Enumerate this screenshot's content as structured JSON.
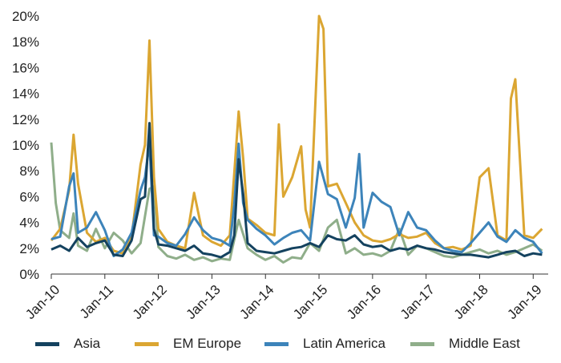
{
  "chart_data": {
    "type": "line",
    "title": "",
    "xlabel": "",
    "ylabel": "",
    "ylim": [
      0,
      20
    ],
    "y_ticks": [
      "0%",
      "2%",
      "4%",
      "6%",
      "8%",
      "10%",
      "12%",
      "14%",
      "16%",
      "18%",
      "20%"
    ],
    "x_ticks": [
      "Jan-10",
      "Jan-11",
      "Jan-12",
      "Jan-13",
      "Jan-14",
      "Jan-15",
      "Jan-16",
      "Jan-17",
      "Jan-18",
      "Jan-19"
    ],
    "grid": false,
    "legend": "bottom",
    "series": [
      {
        "name": "Asia",
        "color": "#14425f",
        "x": [
          "2010-01",
          "2010-03",
          "2010-05",
          "2010-07",
          "2010-09",
          "2010-11",
          "2011-01",
          "2011-03",
          "2011-05",
          "2011-07",
          "2011-09",
          "2011-10",
          "2011-11",
          "2011-12",
          "2012-01",
          "2012-03",
          "2012-05",
          "2012-07",
          "2012-09",
          "2012-11",
          "2013-01",
          "2013-03",
          "2013-05",
          "2013-06",
          "2013-07",
          "2013-08",
          "2013-09",
          "2013-11",
          "2014-01",
          "2014-03",
          "2014-05",
          "2014-07",
          "2014-09",
          "2014-11",
          "2015-01",
          "2015-03",
          "2015-05",
          "2015-07",
          "2015-09",
          "2015-11",
          "2016-01",
          "2016-03",
          "2016-05",
          "2016-07",
          "2016-09",
          "2016-11",
          "2017-01",
          "2017-03",
          "2017-05",
          "2017-07",
          "2017-09",
          "2017-11",
          "2018-01",
          "2018-03",
          "2018-05",
          "2018-07",
          "2018-09",
          "2018-11",
          "2019-01",
          "2019-03"
        ],
        "values": [
          1.9,
          2.2,
          1.8,
          2.8,
          2.1,
          2.4,
          2.6,
          1.5,
          1.4,
          2.6,
          5.8,
          6.0,
          11.7,
          3.5,
          2.3,
          2.2,
          2.0,
          1.8,
          2.2,
          1.6,
          1.5,
          1.3,
          1.7,
          3.0,
          8.9,
          6.2,
          2.4,
          1.8,
          1.7,
          1.6,
          1.8,
          2.0,
          2.1,
          2.4,
          2.1,
          3.0,
          2.7,
          2.6,
          3.0,
          2.3,
          2.1,
          2.2,
          1.8,
          2.0,
          1.9,
          2.2,
          2.0,
          1.9,
          1.7,
          1.6,
          1.5,
          1.5,
          1.4,
          1.3,
          1.5,
          1.7,
          1.8,
          1.4,
          1.6,
          1.5
        ]
      },
      {
        "name": "EM Europe",
        "color": "#dba632",
        "x": [
          "2010-01",
          "2010-03",
          "2010-05",
          "2010-06",
          "2010-07",
          "2010-09",
          "2010-11",
          "2011-01",
          "2011-03",
          "2011-05",
          "2011-07",
          "2011-09",
          "2011-10",
          "2011-11",
          "2011-12",
          "2012-01",
          "2012-03",
          "2012-05",
          "2012-07",
          "2012-09",
          "2012-11",
          "2013-01",
          "2013-03",
          "2013-05",
          "2013-06",
          "2013-07",
          "2013-08",
          "2013-09",
          "2013-11",
          "2014-01",
          "2014-03",
          "2014-04",
          "2014-05",
          "2014-07",
          "2014-09",
          "2014-10",
          "2014-11",
          "2015-01",
          "2015-02",
          "2015-03",
          "2015-05",
          "2015-07",
          "2015-09",
          "2015-11",
          "2016-01",
          "2016-03",
          "2016-05",
          "2016-07",
          "2016-09",
          "2016-11",
          "2017-01",
          "2017-03",
          "2017-05",
          "2017-07",
          "2017-09",
          "2017-11",
          "2018-01",
          "2018-03",
          "2018-05",
          "2018-07",
          "2018-08",
          "2018-09",
          "2018-11",
          "2019-01",
          "2019-03"
        ],
        "values": [
          2.6,
          3.5,
          6.5,
          10.8,
          7.0,
          3.2,
          2.5,
          2.8,
          1.8,
          1.6,
          2.9,
          8.5,
          10.0,
          18.1,
          7.5,
          3.5,
          2.5,
          2.2,
          2.0,
          6.3,
          3.0,
          2.5,
          2.2,
          3.0,
          7.8,
          12.6,
          9.0,
          4.3,
          3.8,
          3.2,
          3.0,
          11.6,
          6.0,
          7.5,
          9.9,
          5.0,
          3.6,
          20.0,
          19.0,
          6.8,
          7.0,
          5.5,
          4.0,
          3.0,
          2.6,
          2.5,
          2.7,
          3.1,
          2.8,
          2.9,
          3.2,
          2.4,
          2.0,
          2.1,
          1.9,
          2.2,
          7.5,
          8.2,
          3.0,
          2.6,
          13.6,
          15.1,
          3.0,
          2.8,
          3.5
        ]
      },
      {
        "name": "Latin America",
        "color": "#3d84ba",
        "x": [
          "2010-01",
          "2010-03",
          "2010-05",
          "2010-06",
          "2010-07",
          "2010-09",
          "2010-11",
          "2011-01",
          "2011-03",
          "2011-05",
          "2011-07",
          "2011-09",
          "2011-10",
          "2011-11",
          "2011-12",
          "2012-01",
          "2012-03",
          "2012-05",
          "2012-07",
          "2012-09",
          "2012-11",
          "2013-01",
          "2013-03",
          "2013-05",
          "2013-06",
          "2013-07",
          "2013-08",
          "2013-09",
          "2013-11",
          "2014-01",
          "2014-03",
          "2014-05",
          "2014-07",
          "2014-09",
          "2014-11",
          "2015-01",
          "2015-03",
          "2015-05",
          "2015-07",
          "2015-09",
          "2015-10",
          "2015-11",
          "2016-01",
          "2016-03",
          "2016-05",
          "2016-07",
          "2016-09",
          "2016-11",
          "2017-01",
          "2017-03",
          "2017-05",
          "2017-07",
          "2017-09",
          "2017-11",
          "2018-01",
          "2018-03",
          "2018-05",
          "2018-07",
          "2018-09",
          "2018-11",
          "2019-01",
          "2019-03"
        ],
        "values": [
          2.7,
          2.9,
          6.8,
          7.8,
          3.2,
          3.6,
          4.8,
          3.4,
          1.4,
          1.9,
          3.2,
          6.5,
          7.5,
          10.2,
          3.0,
          2.9,
          2.4,
          2.2,
          3.1,
          4.4,
          3.4,
          2.8,
          2.6,
          2.2,
          5.4,
          10.1,
          5.5,
          4.2,
          3.5,
          3.0,
          2.3,
          2.8,
          3.2,
          3.4,
          2.6,
          8.7,
          6.2,
          5.8,
          3.6,
          5.9,
          9.3,
          3.6,
          6.3,
          5.6,
          5.2,
          3.0,
          4.8,
          3.6,
          3.4,
          2.6,
          2.0,
          1.8,
          1.7,
          2.4,
          3.2,
          4.0,
          2.9,
          2.5,
          3.4,
          2.8,
          2.5,
          1.6
        ]
      },
      {
        "name": "Middle East",
        "color": "#8fae8a",
        "x": [
          "2010-01",
          "2010-02",
          "2010-03",
          "2010-05",
          "2010-06",
          "2010-07",
          "2010-09",
          "2010-11",
          "2011-01",
          "2011-03",
          "2011-05",
          "2011-07",
          "2011-09",
          "2011-11",
          "2011-12",
          "2012-01",
          "2012-03",
          "2012-05",
          "2012-07",
          "2012-09",
          "2012-11",
          "2013-01",
          "2013-03",
          "2013-05",
          "2013-07",
          "2013-09",
          "2013-11",
          "2014-01",
          "2014-03",
          "2014-05",
          "2014-07",
          "2014-09",
          "2014-11",
          "2015-01",
          "2015-03",
          "2015-05",
          "2015-07",
          "2015-09",
          "2015-11",
          "2016-01",
          "2016-03",
          "2016-05",
          "2016-07",
          "2016-09",
          "2016-11",
          "2017-01",
          "2017-03",
          "2017-05",
          "2017-07",
          "2017-09",
          "2017-11",
          "2018-01",
          "2018-03",
          "2018-05",
          "2018-07",
          "2018-09",
          "2018-11",
          "2019-01",
          "2019-03"
        ],
        "values": [
          10.2,
          5.5,
          3.4,
          2.8,
          4.7,
          2.2,
          1.8,
          3.5,
          2.0,
          3.2,
          2.6,
          1.6,
          2.4,
          6.6,
          6.8,
          2.1,
          1.4,
          1.2,
          1.5,
          1.1,
          1.3,
          1.0,
          1.2,
          1.1,
          4.2,
          2.0,
          1.5,
          1.1,
          1.4,
          0.9,
          1.3,
          1.2,
          2.4,
          1.8,
          3.6,
          4.2,
          1.6,
          2.0,
          1.5,
          1.6,
          1.4,
          1.8,
          3.5,
          1.5,
          2.2,
          2.0,
          1.7,
          1.4,
          1.3,
          1.5,
          1.7,
          1.9,
          1.6,
          1.8,
          1.5,
          1.7,
          2.0,
          2.3,
          1.8
        ]
      }
    ]
  }
}
